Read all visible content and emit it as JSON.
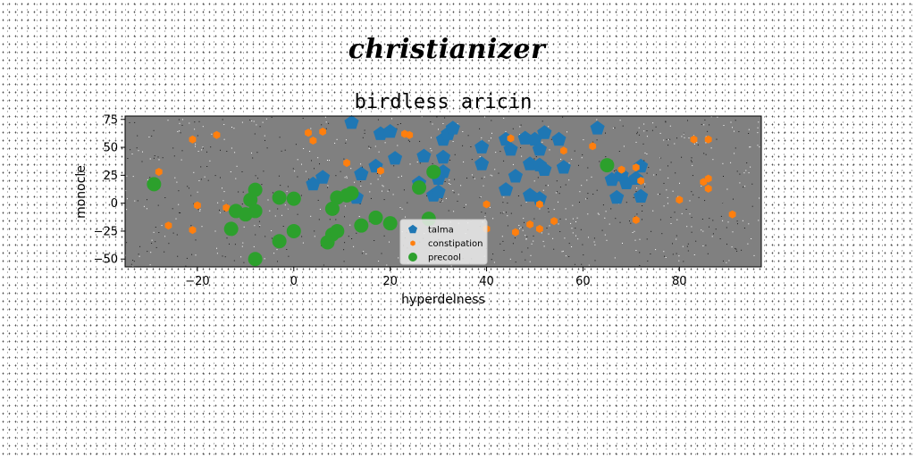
{
  "figure": {
    "suptitle": "christianizer"
  },
  "colors": {
    "plot_background": "#808080",
    "talma": "#1f77b4",
    "constipation": "#ff7f0e",
    "precool": "#2ca02c"
  },
  "chart_data": {
    "type": "scatter",
    "title": "birdless aricin",
    "xlabel": "hyperdelness",
    "ylabel": "monocle",
    "xlim": [
      -35,
      97
    ],
    "ylim": [
      -57,
      78
    ],
    "xticks": [
      -20,
      0,
      20,
      40,
      60,
      80
    ],
    "yticks": [
      -50,
      -25,
      0,
      25,
      50,
      75
    ],
    "grid": false,
    "legend_position": "lower-center",
    "series": [
      {
        "name": "talma",
        "marker": "pentagon",
        "color": "#1f77b4",
        "points": [
          [
            12,
            72
          ],
          [
            18,
            62
          ],
          [
            20,
            64
          ],
          [
            21,
            40
          ],
          [
            17,
            33
          ],
          [
            14,
            26
          ],
          [
            13,
            5
          ],
          [
            4,
            17
          ],
          [
            6,
            23
          ],
          [
            26,
            18
          ],
          [
            27,
            42
          ],
          [
            29,
            7
          ],
          [
            30,
            22
          ],
          [
            31,
            41
          ],
          [
            31,
            57
          ],
          [
            32,
            62
          ],
          [
            33,
            67
          ],
          [
            31,
            28
          ],
          [
            30,
            10
          ],
          [
            39,
            50
          ],
          [
            39,
            35
          ],
          [
            44,
            57
          ],
          [
            44,
            12
          ],
          [
            45,
            48
          ],
          [
            46,
            24
          ],
          [
            48,
            58
          ],
          [
            50,
            57
          ],
          [
            49,
            35
          ],
          [
            51,
            34
          ],
          [
            51,
            48
          ],
          [
            52,
            30
          ],
          [
            52,
            63
          ],
          [
            49,
            7
          ],
          [
            51,
            4
          ],
          [
            55,
            57
          ],
          [
            56,
            32
          ],
          [
            63,
            67
          ],
          [
            66,
            21
          ],
          [
            67,
            5
          ],
          [
            68,
            25
          ],
          [
            69,
            18
          ],
          [
            71,
            22
          ],
          [
            72,
            33
          ],
          [
            72,
            6
          ]
        ]
      },
      {
        "name": "constipation",
        "marker": "hexagon",
        "color": "#ff7f0e",
        "points": [
          [
            -28,
            28
          ],
          [
            -21,
            57
          ],
          [
            -20,
            -2
          ],
          [
            -21,
            -24
          ],
          [
            -26,
            -20
          ],
          [
            -16,
            61
          ],
          [
            -14,
            -4
          ],
          [
            3,
            63
          ],
          [
            4,
            56
          ],
          [
            6,
            64
          ],
          [
            11,
            36
          ],
          [
            18,
            29
          ],
          [
            23,
            62
          ],
          [
            24,
            61
          ],
          [
            40,
            -1
          ],
          [
            40,
            -23
          ],
          [
            45,
            58
          ],
          [
            46,
            -26
          ],
          [
            49,
            -19
          ],
          [
            51,
            -23
          ],
          [
            51,
            -1
          ],
          [
            54,
            -16
          ],
          [
            56,
            47
          ],
          [
            62,
            51
          ],
          [
            68,
            30
          ],
          [
            71,
            32
          ],
          [
            71,
            -15
          ],
          [
            72,
            20
          ],
          [
            80,
            3
          ],
          [
            83,
            57
          ],
          [
            85,
            19
          ],
          [
            86,
            22
          ],
          [
            86,
            13
          ],
          [
            86,
            57
          ],
          [
            91,
            -10
          ]
        ]
      },
      {
        "name": "precool",
        "marker": "circle",
        "color": "#2ca02c",
        "points": [
          [
            -29,
            17
          ],
          [
            -13,
            -23
          ],
          [
            -12,
            -7
          ],
          [
            -10,
            -10
          ],
          [
            -9,
            3
          ],
          [
            -8,
            -7
          ],
          [
            -8,
            -50
          ],
          [
            -8,
            12
          ],
          [
            -3,
            -34
          ],
          [
            -3,
            5
          ],
          [
            0,
            4
          ],
          [
            0,
            -25
          ],
          [
            7,
            -35
          ],
          [
            8,
            -5
          ],
          [
            8,
            -28
          ],
          [
            9,
            -25
          ],
          [
            9,
            5
          ],
          [
            11,
            7
          ],
          [
            12,
            9
          ],
          [
            14,
            -20
          ],
          [
            17,
            -13
          ],
          [
            20,
            -18
          ],
          [
            26,
            14
          ],
          [
            28,
            -14
          ],
          [
            29,
            28
          ],
          [
            65,
            34
          ]
        ]
      }
    ]
  }
}
